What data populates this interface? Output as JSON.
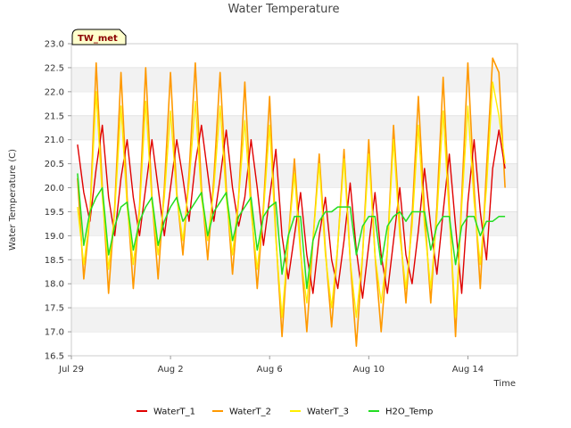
{
  "chart_data": {
    "type": "line",
    "title": "Water Temperature",
    "xlabel": "Time",
    "ylabel": "Water Temperature (C)",
    "site_badge": "TW_met",
    "x_unit": "days since Jul 29",
    "xlim": [
      0,
      18
    ],
    "ylim": [
      16.5,
      23.0
    ],
    "y_ticks": [
      16.5,
      17.0,
      17.5,
      18.0,
      18.5,
      19.0,
      19.5,
      20.0,
      20.5,
      21.0,
      21.5,
      22.0,
      22.5,
      23.0
    ],
    "y_tick_labels": [
      "16.5",
      "17.0",
      "17.5",
      "18.0",
      "18.5",
      "19.0",
      "19.5",
      "20.0",
      "20.5",
      "21.0",
      "21.5",
      "22.0",
      "22.5",
      "23.0"
    ],
    "x_ticks": [
      0,
      4,
      8,
      12,
      16
    ],
    "x_tick_labels": [
      "Jul 29",
      "Aug 2",
      "Aug 6",
      "Aug 10",
      "Aug 14"
    ],
    "grid": "horizontal bands",
    "legend_position": "bottom-center",
    "series": [
      {
        "name": "WaterT_1",
        "color": "#e00000",
        "x": [
          0.25,
          0.5,
          0.75,
          1,
          1.25,
          1.5,
          1.75,
          2,
          2.25,
          2.5,
          2.75,
          3,
          3.25,
          3.5,
          3.75,
          4,
          4.25,
          4.5,
          4.75,
          5,
          5.25,
          5.5,
          5.75,
          6,
          6.25,
          6.5,
          6.75,
          7,
          7.25,
          7.5,
          7.75,
          8,
          8.25,
          8.5,
          8.75,
          9,
          9.25,
          9.5,
          9.75,
          10,
          10.25,
          10.5,
          10.75,
          11,
          11.25,
          11.5,
          11.75,
          12,
          12.25,
          12.5,
          12.75,
          13,
          13.25,
          13.5,
          13.75,
          14,
          14.25,
          14.5,
          14.75,
          15,
          15.25,
          15.5,
          15.75,
          16,
          16.25,
          16.5,
          16.75,
          17,
          17.25,
          17.5
        ],
        "y": [
          20.9,
          19.9,
          19.3,
          20.4,
          21.3,
          19.8,
          19.0,
          20.2,
          21.0,
          19.8,
          19.0,
          20.0,
          21.0,
          20.0,
          19.0,
          20.0,
          21.0,
          20.2,
          19.3,
          20.5,
          21.3,
          20.3,
          19.3,
          20.2,
          21.2,
          20.0,
          19.2,
          19.8,
          21.0,
          20.0,
          18.8,
          19.8,
          20.8,
          19.0,
          18.1,
          19.0,
          19.9,
          18.6,
          17.8,
          19.0,
          19.8,
          18.5,
          17.9,
          18.9,
          20.1,
          18.7,
          17.7,
          18.8,
          19.9,
          18.6,
          17.8,
          18.9,
          20.0,
          18.6,
          18.0,
          19.1,
          20.4,
          19.2,
          18.2,
          19.5,
          20.7,
          19.2,
          17.8,
          19.7,
          21.0,
          19.5,
          18.5,
          20.4,
          21.2,
          20.4
        ]
      },
      {
        "name": "WaterT_2",
        "color": "#ff9900",
        "x": [
          0.25,
          0.5,
          0.75,
          1,
          1.25,
          1.5,
          1.75,
          2,
          2.25,
          2.5,
          2.75,
          3,
          3.25,
          3.5,
          3.75,
          4,
          4.25,
          4.5,
          4.75,
          5,
          5.25,
          5.5,
          5.75,
          6,
          6.25,
          6.5,
          6.75,
          7,
          7.25,
          7.5,
          7.75,
          8,
          8.25,
          8.5,
          8.75,
          9,
          9.25,
          9.5,
          9.75,
          10,
          10.25,
          10.5,
          10.75,
          11,
          11.25,
          11.5,
          11.75,
          12,
          12.25,
          12.5,
          12.75,
          13,
          13.25,
          13.5,
          13.75,
          14,
          14.25,
          14.5,
          14.75,
          15,
          15.25,
          15.5,
          15.75,
          16,
          16.25,
          16.5,
          16.75,
          17,
          17.25,
          17.5
        ],
        "y": [
          20.2,
          18.1,
          19.4,
          22.6,
          20.0,
          17.8,
          19.6,
          22.4,
          19.8,
          17.9,
          19.6,
          22.5,
          19.8,
          18.1,
          20.0,
          22.4,
          19.9,
          18.6,
          20.3,
          22.6,
          20.0,
          18.5,
          20.2,
          22.4,
          20.0,
          18.2,
          19.8,
          22.2,
          19.7,
          17.9,
          19.6,
          21.9,
          19.0,
          16.9,
          18.9,
          20.6,
          18.7,
          17.0,
          18.9,
          20.7,
          18.7,
          17.1,
          18.8,
          20.8,
          18.5,
          16.7,
          18.6,
          21.0,
          18.6,
          17.0,
          18.7,
          21.3,
          19.2,
          17.6,
          19.4,
          21.9,
          19.5,
          17.6,
          19.6,
          22.3,
          19.6,
          16.9,
          19.8,
          22.6,
          20.0,
          17.9,
          20.4,
          22.7,
          22.4,
          20.0
        ]
      },
      {
        "name": "WaterT_3",
        "color": "#ffee00",
        "x": [
          0.25,
          0.5,
          0.75,
          1,
          1.25,
          1.5,
          1.75,
          2,
          2.25,
          2.5,
          2.75,
          3,
          3.25,
          3.5,
          3.75,
          4,
          4.25,
          4.5,
          4.75,
          5,
          5.25,
          5.5,
          5.75,
          6,
          6.25,
          6.5,
          6.75,
          7,
          7.25,
          7.5,
          7.75,
          8,
          8.25,
          8.5,
          8.75,
          9,
          9.25,
          9.5,
          9.75,
          10,
          10.25,
          10.5,
          10.75,
          11,
          11.25,
          11.5,
          11.75,
          12,
          12.25,
          12.5,
          12.75,
          13,
          13.25,
          13.5,
          13.75,
          14,
          14.25,
          14.5,
          14.75,
          15,
          15.25,
          15.5,
          15.75,
          16,
          16.25,
          16.5,
          16.75,
          17,
          17.25,
          17.5
        ],
        "y": [
          19.6,
          18.4,
          19.4,
          22.0,
          19.8,
          18.3,
          19.5,
          21.7,
          19.6,
          18.4,
          19.5,
          21.8,
          19.7,
          18.6,
          19.8,
          21.6,
          19.8,
          18.9,
          20.1,
          21.8,
          19.8,
          18.9,
          20.0,
          21.7,
          19.8,
          18.6,
          19.8,
          21.4,
          19.5,
          18.3,
          19.5,
          21.3,
          18.9,
          17.3,
          18.9,
          20.3,
          18.6,
          17.6,
          18.9,
          20.5,
          18.6,
          17.5,
          18.8,
          20.6,
          18.5,
          17.3,
          18.6,
          20.7,
          18.6,
          17.6,
          18.7,
          21.0,
          19.0,
          17.9,
          19.2,
          21.3,
          19.2,
          17.9,
          19.4,
          21.6,
          19.4,
          17.3,
          19.6,
          21.7,
          19.7,
          18.4,
          20.0,
          22.2,
          21.5,
          20.5
        ]
      },
      {
        "name": "H2O_Temp",
        "color": "#22dd22",
        "x": [
          0.25,
          0.5,
          0.75,
          1,
          1.25,
          1.5,
          1.75,
          2,
          2.25,
          2.5,
          2.75,
          3,
          3.25,
          3.5,
          3.75,
          4,
          4.25,
          4.5,
          4.75,
          5,
          5.25,
          5.5,
          5.75,
          6,
          6.25,
          6.5,
          6.75,
          7,
          7.25,
          7.5,
          7.75,
          8,
          8.25,
          8.5,
          8.75,
          9,
          9.25,
          9.5,
          9.75,
          10,
          10.25,
          10.5,
          10.75,
          11,
          11.25,
          11.5,
          11.75,
          12,
          12.25,
          12.5,
          12.75,
          13,
          13.25,
          13.5,
          13.75,
          14,
          14.25,
          14.5,
          14.75,
          15,
          15.25,
          15.5,
          15.75,
          16,
          16.25,
          16.5,
          16.75,
          17,
          17.25,
          17.5
        ],
        "y": [
          20.3,
          18.8,
          19.5,
          19.8,
          20.0,
          18.6,
          19.2,
          19.6,
          19.7,
          18.7,
          19.3,
          19.6,
          19.8,
          18.8,
          19.3,
          19.6,
          19.8,
          19.3,
          19.5,
          19.7,
          19.9,
          19.0,
          19.5,
          19.7,
          19.9,
          18.9,
          19.4,
          19.6,
          19.8,
          18.7,
          19.4,
          19.6,
          19.7,
          18.2,
          19.0,
          19.4,
          19.4,
          17.9,
          18.9,
          19.3,
          19.5,
          19.5,
          19.6,
          19.6,
          19.6,
          18.6,
          19.2,
          19.4,
          19.4,
          18.4,
          19.2,
          19.4,
          19.5,
          19.3,
          19.5,
          19.5,
          19.5,
          18.7,
          19.2,
          19.4,
          19.4,
          18.4,
          19.2,
          19.4,
          19.4,
          19.0,
          19.3,
          19.3,
          19.4,
          19.4
        ]
      }
    ]
  }
}
